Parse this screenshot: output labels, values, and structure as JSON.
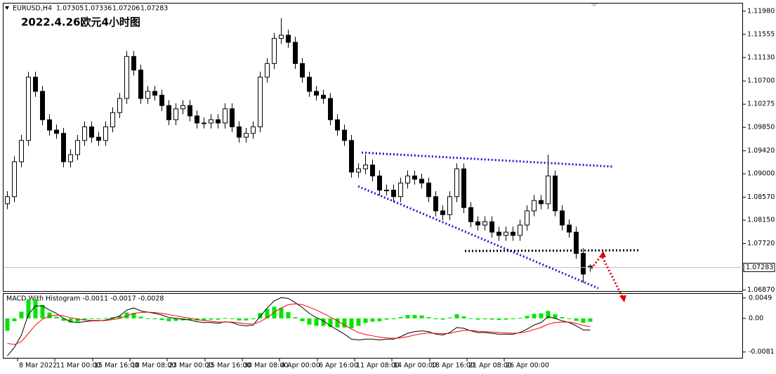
{
  "header": {
    "symbol": "EURUSD,H4",
    "title": "2022.4.26欧元4小时图"
  },
  "chart_data": [
    {
      "type": "candlestick",
      "up_color": "#ffffff",
      "down_color": "#000000",
      "xlim": [
        -0.5,
        104.8
      ],
      "ylim": [
        1.0685,
        1.1212
      ],
      "yticks": [
        {
          "value": 1.1198,
          "label": "1.11980"
        },
        {
          "value": 1.11555,
          "label": "1.11555"
        },
        {
          "value": 1.1113,
          "label": "1.11130"
        },
        {
          "value": 1.107,
          "label": "1.10700"
        },
        {
          "value": 1.10275,
          "label": "1.10275"
        },
        {
          "value": 1.0985,
          "label": "1.09850"
        },
        {
          "value": 1.0942,
          "label": "1.09420"
        },
        {
          "value": 1.09,
          "label": "1.09000"
        },
        {
          "value": 1.0857,
          "label": "1.08570"
        },
        {
          "value": 1.0815,
          "label": "1.08150"
        },
        {
          "value": 1.0772,
          "label": "1.07720"
        },
        {
          "value": 1.0687,
          "label": "1.06870"
        }
      ],
      "xticks": [
        {
          "value": 1.5,
          "label": "8 Mar 2022"
        },
        {
          "value": 6.8,
          "label": "11 Mar 00:00"
        },
        {
          "value": 12.2,
          "label": "15 Mar 16:00"
        },
        {
          "value": 17.5,
          "label": "18 Mar 08:00"
        },
        {
          "value": 22.8,
          "label": "23 Mar 00:00"
        },
        {
          "value": 28.2,
          "label": "25 Mar 16:00"
        },
        {
          "value": 33.5,
          "label": "30 Mar 08:00"
        },
        {
          "value": 38.8,
          "label": "4 Apr 00:00"
        },
        {
          "value": 44.2,
          "label": "6 Apr 16:00"
        },
        {
          "value": 49.5,
          "label": "11 Apr 08:00"
        },
        {
          "value": 54.8,
          "label": "14 Apr 00:00"
        },
        {
          "value": 60.2,
          "label": "18 Apr 16:00"
        },
        {
          "value": 65.5,
          "label": "21 Apr 08:00"
        },
        {
          "value": 70.8,
          "label": "26 Apr 00:00"
        }
      ],
      "candles": [
        [
          1.0845,
          1.0868,
          1.0835,
          1.0858
        ],
        [
          1.0858,
          1.0932,
          1.0848,
          1.0922
        ],
        [
          1.0922,
          1.0971,
          1.0912,
          1.0961
        ],
        [
          1.0961,
          1.1087,
          1.0951,
          1.1077
        ],
        [
          1.1077,
          1.1087,
          1.1041,
          1.1051
        ],
        [
          1.1051,
          1.1061,
          1.0989,
          1.0999
        ],
        [
          1.0999,
          1.1009,
          1.097,
          1.098
        ],
        [
          1.098,
          1.099,
          1.0964,
          1.0974
        ],
        [
          1.0974,
          1.0984,
          1.0912,
          1.0922
        ],
        [
          1.0922,
          1.0945,
          1.0912,
          1.0935
        ],
        [
          1.0935,
          1.0971,
          1.0925,
          1.0961
        ],
        [
          1.0961,
          1.0996,
          1.0951,
          1.0986
        ],
        [
          1.0986,
          1.0996,
          1.0957,
          1.0967
        ],
        [
          1.0967,
          1.0977,
          1.0951,
          1.0961
        ],
        [
          1.0961,
          1.0996,
          1.0951,
          1.0986
        ],
        [
          1.0986,
          1.1022,
          1.0976,
          1.1012
        ],
        [
          1.1012,
          1.1048,
          1.1002,
          1.1038
        ],
        [
          1.1038,
          1.1125,
          1.1028,
          1.1115
        ],
        [
          1.1115,
          1.1125,
          1.108,
          1.109
        ],
        [
          1.109,
          1.11,
          1.1028,
          1.1038
        ],
        [
          1.1038,
          1.1061,
          1.1028,
          1.1051
        ],
        [
          1.1051,
          1.1061,
          1.1034,
          1.1044
        ],
        [
          1.1044,
          1.1054,
          1.1015,
          1.1025
        ],
        [
          1.1025,
          1.1035,
          1.0989,
          1.0999
        ],
        [
          1.0999,
          1.1029,
          1.0989,
          1.1019
        ],
        [
          1.1019,
          1.1035,
          1.1009,
          1.1025
        ],
        [
          1.1025,
          1.1035,
          1.0996,
          1.1006
        ],
        [
          1.1006,
          1.1016,
          1.0983,
          1.0993
        ],
        [
          1.0993,
          1.1003,
          1.0983,
          1.0993
        ],
        [
          1.0993,
          1.1009,
          1.0983,
          1.0999
        ],
        [
          1.0999,
          1.1009,
          1.0983,
          1.0993
        ],
        [
          1.0993,
          1.1029,
          1.0983,
          1.1019
        ],
        [
          1.1019,
          1.1029,
          1.0976,
          1.0986
        ],
        [
          1.0986,
          1.0996,
          1.0957,
          1.0967
        ],
        [
          1.0967,
          1.0984,
          1.0957,
          1.0974
        ],
        [
          1.0974,
          1.0996,
          1.0964,
          1.0986
        ],
        [
          1.0986,
          1.1087,
          1.0976,
          1.1077
        ],
        [
          1.1077,
          1.1112,
          1.1067,
          1.1102
        ],
        [
          1.1102,
          1.1158,
          1.1092,
          1.1148
        ],
        [
          1.1148,
          1.1185,
          1.1138,
          1.1154
        ],
        [
          1.1154,
          1.1164,
          1.1131,
          1.1141
        ],
        [
          1.1141,
          1.1151,
          1.1092,
          1.1102
        ],
        [
          1.1102,
          1.1112,
          1.1067,
          1.1077
        ],
        [
          1.1077,
          1.1087,
          1.1041,
          1.1051
        ],
        [
          1.1051,
          1.1061,
          1.1034,
          1.1044
        ],
        [
          1.1044,
          1.1054,
          1.1028,
          1.1038
        ],
        [
          1.1038,
          1.1048,
          1.0989,
          1.0999
        ],
        [
          1.0999,
          1.1009,
          1.097,
          1.098
        ],
        [
          1.098,
          1.099,
          1.0951,
          1.0961
        ],
        [
          1.0961,
          1.0971,
          1.0893,
          1.0903
        ],
        [
          1.0903,
          1.0919,
          1.0893,
          1.0909
        ],
        [
          1.0909,
          1.0935,
          1.0899,
          1.0916
        ],
        [
          1.0916,
          1.0926,
          1.0886,
          1.0896
        ],
        [
          1.0896,
          1.0906,
          1.086,
          1.087
        ],
        [
          1.087,
          1.088,
          1.086,
          1.087
        ],
        [
          1.087,
          1.088,
          1.0848,
          1.0858
        ],
        [
          1.0858,
          1.0893,
          1.0848,
          1.0883
        ],
        [
          1.0883,
          1.0906,
          1.0873,
          1.0896
        ],
        [
          1.0896,
          1.0906,
          1.088,
          1.089
        ],
        [
          1.089,
          1.09,
          1.0873,
          1.0883
        ],
        [
          1.0883,
          1.0893,
          1.0848,
          1.0858
        ],
        [
          1.0858,
          1.0868,
          1.0822,
          1.0832
        ],
        [
          1.0832,
          1.0842,
          1.0815,
          1.0825
        ],
        [
          1.0825,
          1.0868,
          1.0815,
          1.0858
        ],
        [
          1.0858,
          1.0919,
          1.0848,
          1.0909
        ],
        [
          1.0909,
          1.0919,
          1.0828,
          1.0838
        ],
        [
          1.0838,
          1.0848,
          1.0802,
          1.0812
        ],
        [
          1.0812,
          1.0822,
          1.0796,
          1.0806
        ],
        [
          1.0806,
          1.0822,
          1.0796,
          1.0812
        ],
        [
          1.0812,
          1.0822,
          1.0783,
          1.0793
        ],
        [
          1.0793,
          1.0803,
          1.0777,
          1.0787
        ],
        [
          1.0787,
          1.0803,
          1.0777,
          1.0793
        ],
        [
          1.0793,
          1.0803,
          1.0777,
          1.0787
        ],
        [
          1.0787,
          1.0816,
          1.0777,
          1.0806
        ],
        [
          1.0806,
          1.0842,
          1.0796,
          1.0832
        ],
        [
          1.0832,
          1.0861,
          1.0822,
          1.0851
        ],
        [
          1.0851,
          1.0861,
          1.0835,
          1.0845
        ],
        [
          1.0845,
          1.0935,
          1.0835,
          1.0896
        ],
        [
          1.0896,
          1.0906,
          1.0822,
          1.0832
        ],
        [
          1.0832,
          1.0842,
          1.0796,
          1.0806
        ],
        [
          1.0806,
          1.0816,
          1.0783,
          1.0793
        ],
        [
          1.0793,
          1.0803,
          1.0744,
          1.0754
        ],
        [
          1.0754,
          1.0764,
          1.07,
          1.0716
        ],
        [
          1.07305,
          1.07336,
          1.07206,
          1.07283
        ]
      ]
    },
    {
      "type": "macd",
      "label": "MACD With Histogram -0.0011 -0.0017 -0.0028",
      "xlim": [
        -0.5,
        104.8
      ],
      "ylim": [
        -0.0095,
        0.0059
      ],
      "yticks": [
        0.0049,
        {
          "value": 0,
          "label": "0.00"
        },
        -0.0081
      ],
      "histogram": {
        "color": "#00e600",
        "values": [
          -0.003,
          -0.0007,
          0.0016,
          0.0046,
          0.0046,
          0.0032,
          0.0014,
          0.0004,
          -0.0006,
          -0.001,
          -0.0008,
          -0.0004,
          -0.0001,
          -0.0001,
          0.0001,
          0.0003,
          0.0006,
          0.0014,
          0.0013,
          0.0004,
          0,
          -0.0002,
          -0.0004,
          -0.0007,
          -0.0006,
          -0.0005,
          -0.0004,
          -0.0005,
          -0.0005,
          -0.0003,
          -0.0003,
          0.0001,
          -0.0001,
          -0.0005,
          -0.0005,
          -0.0002,
          0.0013,
          0.0023,
          0.0028,
          0.0025,
          0.0015,
          0.0003,
          -0.0007,
          -0.0015,
          -0.0018,
          -0.0018,
          -0.0021,
          -0.0022,
          -0.0022,
          -0.0024,
          -0.0018,
          -0.0011,
          -0.0008,
          -0.0007,
          -0.0003,
          -0.0002,
          0.0003,
          0.0008,
          0.0008,
          0.0007,
          0.0003,
          -0.0002,
          -0.0003,
          0.0002,
          0.001,
          0.0005,
          -0.0001,
          -0.0003,
          -0.0002,
          -0.0003,
          -0.0004,
          -0.0003,
          -0.0002,
          0.0001,
          0.0006,
          0.0011,
          0.0012,
          0.0018,
          0.001,
          0.0003,
          -0.0001,
          -0.0006,
          -0.0011,
          -0.0008
        ]
      },
      "series": [
        {
          "color": "#000000",
          "values": [
            -0.009,
            -0.007,
            -0.004,
            0.001,
            0.003,
            0.003,
            0.002,
            0.0012,
            0,
            -0.0008,
            -0.001,
            -0.0008,
            -0.0006,
            -0.0006,
            -0.0004,
            0,
            0.0006,
            0.002,
            0.0025,
            0.0018,
            0.0015,
            0.0012,
            0.0008,
            0.0002,
            0,
            -0.0002,
            -0.0004,
            -0.0008,
            -0.001,
            -0.001,
            -0.0012,
            -0.0008,
            -0.001,
            -0.0016,
            -0.0018,
            -0.0016,
            0.0005,
            0.0025,
            0.0042,
            0.005,
            0.0048,
            0.0038,
            0.0026,
            0.0012,
            0.0002,
            -0.0006,
            -0.0018,
            -0.0028,
            -0.0038,
            -0.005,
            -0.0052,
            -0.005,
            -0.005,
            -0.0052,
            -0.005,
            -0.005,
            -0.0044,
            -0.0036,
            -0.0032,
            -0.003,
            -0.0032,
            -0.0038,
            -0.004,
            -0.0034,
            -0.0022,
            -0.0024,
            -0.003,
            -0.0034,
            -0.0034,
            -0.0036,
            -0.0038,
            -0.0038,
            -0.0038,
            -0.0034,
            -0.0026,
            -0.0016,
            -0.001,
            0.0004,
            0,
            -0.0006,
            -0.001,
            -0.0018,
            -0.0028,
            -0.0028
          ]
        },
        {
          "color": "#ff0000",
          "values": [
            -0.006,
            -0.0063,
            -0.0056,
            -0.0036,
            -0.0016,
            -0.0002,
            0.0006,
            0.0008,
            0.0006,
            0.0002,
            -0.0002,
            -0.0004,
            -0.0005,
            -0.0005,
            -0.0005,
            -0.0003,
            0,
            0.0006,
            0.0012,
            0.0014,
            0.0015,
            0.0014,
            0.0012,
            0.0009,
            0.0006,
            0.0003,
            0,
            -0.0003,
            -0.0005,
            -0.0007,
            -0.0009,
            -0.0009,
            -0.0009,
            -0.0011,
            -0.0013,
            -0.0014,
            -0.0008,
            0.0002,
            0.0014,
            0.0025,
            0.0033,
            0.0035,
            0.0033,
            0.0027,
            0.002,
            0.0012,
            0.0003,
            -0.0006,
            -0.0016,
            -0.0026,
            -0.0034,
            -0.0039,
            -0.0042,
            -0.0045,
            -0.0047,
            -0.0048,
            -0.0047,
            -0.0044,
            -0.004,
            -0.0037,
            -0.0035,
            -0.0036,
            -0.0037,
            -0.0036,
            -0.0032,
            -0.0029,
            -0.0029,
            -0.0031,
            -0.0032,
            -0.0033,
            -0.0034,
            -0.0035,
            -0.0036,
            -0.0035,
            -0.0032,
            -0.0027,
            -0.0022,
            -0.0014,
            -0.001,
            -0.0009,
            -0.0009,
            -0.0012,
            -0.0017,
            -0.002
          ]
        }
      ]
    }
  ]
}
